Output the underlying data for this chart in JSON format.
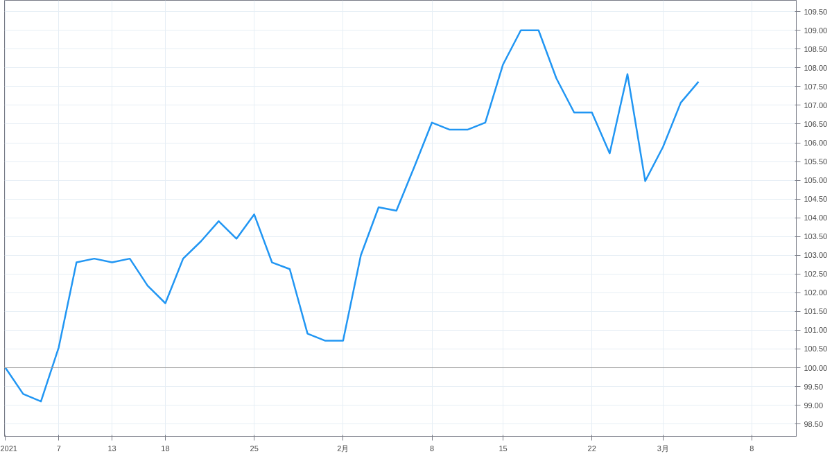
{
  "chart_data": {
    "type": "line",
    "categories": [
      "2021",
      null,
      null,
      "7",
      null,
      null,
      "13",
      null,
      null,
      "18",
      null,
      null,
      null,
      null,
      "25",
      null,
      null,
      null,
      null,
      "2月",
      null,
      null,
      null,
      null,
      "8",
      null,
      null,
      null,
      "15",
      null,
      null,
      null,
      null,
      "22",
      null,
      null,
      null,
      "3月",
      null,
      null,
      null,
      null,
      "8",
      null,
      null
    ],
    "series": [
      {
        "color": "#2196f3",
        "values": [
          100.0,
          99.3,
          99.1,
          100.54,
          102.81,
          102.91,
          102.81,
          102.91,
          102.19,
          101.72,
          102.91,
          103.37,
          103.91,
          103.44,
          104.09,
          102.81,
          102.63,
          100.91,
          100.72,
          100.72,
          103.0,
          104.28,
          104.19,
          105.35,
          106.54,
          106.35,
          106.35,
          106.54,
          108.09,
          109.0,
          109.0,
          107.72,
          106.81,
          106.81,
          105.72,
          107.83,
          104.98,
          105.89,
          107.07,
          107.63,
          null,
          null,
          null,
          null,
          null
        ]
      }
    ],
    "ylim": [
      98.17,
      109.8
    ],
    "yticks": [
      {
        "value": 98.5,
        "label": "98.50"
      },
      {
        "value": 99,
        "label": "99.00"
      },
      {
        "value": 99.5,
        "label": "99.50"
      },
      {
        "value": 100,
        "label": "100.00"
      },
      {
        "value": 100.5,
        "label": "100.50"
      },
      {
        "value": 101,
        "label": "101.00"
      },
      {
        "value": 101.5,
        "label": "101.50"
      },
      {
        "value": 102,
        "label": "102.00"
      },
      {
        "value": 102.5,
        "label": "102.50"
      },
      {
        "value": 103,
        "label": "103.00"
      },
      {
        "value": 103.5,
        "label": "103.50"
      },
      {
        "value": 104,
        "label": "104.00"
      },
      {
        "value": 104.5,
        "label": "104.50"
      },
      {
        "value": 105,
        "label": "105.00"
      },
      {
        "value": 105.5,
        "label": "105.50"
      },
      {
        "value": 106,
        "label": "106.00"
      },
      {
        "value": 106.5,
        "label": "106.50"
      },
      {
        "value": 107,
        "label": "107.00"
      },
      {
        "value": 107.5,
        "label": "107.50"
      },
      {
        "value": 108,
        "label": "108.00"
      },
      {
        "value": 108.5,
        "label": "108.50"
      },
      {
        "value": 109,
        "label": "109.00"
      },
      {
        "value": 109.5,
        "label": "109.50"
      }
    ],
    "ref_lines": [
      {
        "axis": "y",
        "value": 100,
        "color": "#9e9e9e"
      }
    ],
    "grid": true,
    "marker": "none",
    "line_style": "solid"
  }
}
